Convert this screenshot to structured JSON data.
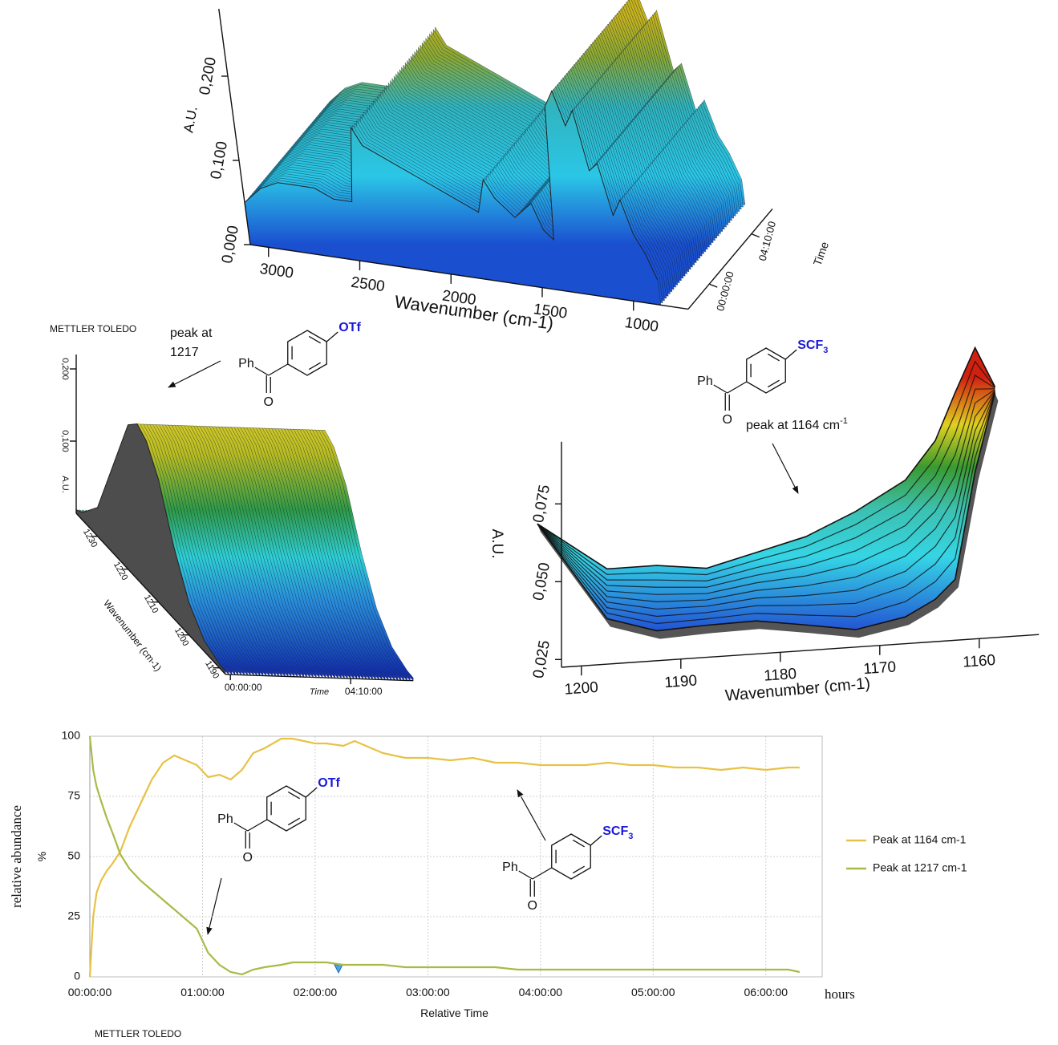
{
  "chart_data": [
    {
      "type": "surface3d",
      "x": [
        3100,
        3000,
        2900,
        2800,
        2700,
        2600,
        2500,
        2450,
        2400,
        2300,
        2200,
        2100,
        2000,
        1900,
        1800,
        1750,
        1700,
        1600,
        1500,
        1450,
        1400,
        1350,
        1300,
        1250,
        1200,
        1150,
        1100,
        1050,
        1000,
        950,
        900,
        850
      ],
      "values": [
        0.05,
        0.07,
        0.08,
        0.08,
        0.08,
        0.07,
        0.07,
        0.16,
        0.14,
        0.13,
        0.12,
        0.11,
        0.1,
        0.09,
        0.08,
        0.12,
        0.1,
        0.08,
        0.1,
        0.07,
        0.06,
        0.22,
        0.24,
        0.2,
        0.22,
        0.15,
        0.16,
        0.1,
        0.12,
        0.08,
        0.06,
        0.03
      ],
      "xlabel": "Wavenumber (cm-1)",
      "ylabel": "A.U.",
      "zlabel": "Time",
      "xlim": [
        3100,
        700
      ],
      "xticks": [
        3000,
        2500,
        2000,
        1500,
        1000
      ],
      "ylim": [
        0,
        0.28
      ],
      "yticks": [
        {
          "value": 0,
          "label": "0,000"
        },
        {
          "value": 0.1,
          "label": "0,100"
        },
        {
          "value": 0.2,
          "label": "0,200"
        }
      ],
      "zlim": [
        -125,
        375
      ],
      "zticks": [
        {
          "value": 0,
          "label": "00:00:00"
        },
        {
          "value": 250,
          "label": "04:10:00"
        }
      ]
    },
    {
      "type": "surface3d",
      "brand": "METTLER TOLEDO",
      "annotation": [
        "peak at",
        "1217"
      ],
      "molecules": [
        {
          "left": "Ph",
          "bottom": "O",
          "substituent": {
            "main": "OTf"
          }
        }
      ],
      "x": [
        1237,
        1235,
        1230,
        1225,
        1220,
        1217,
        1214,
        1210,
        1205,
        1200,
        1195,
        1190,
        1188
      ],
      "values": [
        0.005,
        0.01,
        0.04,
        0.12,
        0.2,
        0.215,
        0.205,
        0.17,
        0.1,
        0.045,
        0.015,
        0.005,
        0.004
      ],
      "xlabel": "Wavenumber (cm-1)",
      "ylabel": "A.U.",
      "zlabel": "Time",
      "xlim": [
        1237,
        1188
      ],
      "xticks": [
        1230,
        1220,
        1210,
        1200,
        1190
      ],
      "ylim": [
        0,
        0.22
      ],
      "yticks": [
        {
          "value": 0.1,
          "label": "0,100"
        },
        {
          "value": 0.2,
          "label": "0,200"
        }
      ],
      "zlim": [
        -10,
        380
      ],
      "zticks": [
        {
          "value": 0,
          "label": "00:00:00"
        },
        {
          "value": 250,
          "label": "04:10:00"
        }
      ]
    },
    {
      "type": "surface3d",
      "molecules": [
        {
          "left": "Ph",
          "bottom": "O",
          "substituent": {
            "main": "SCF",
            "sub": "3"
          }
        }
      ],
      "annotation": {
        "main": "peak at 1164 cm",
        "sup": "-1"
      },
      "x": [
        1202,
        1195,
        1190,
        1185,
        1180,
        1175,
        1170,
        1165,
        1162,
        1160,
        1158,
        1156
      ],
      "series": [
        {
          "values": [
            0.066,
            0.034,
            0.029,
            0.0297,
            0.03,
            0.0276,
            0.025,
            0.028,
            0.033,
            0.039,
            0.073,
            0.098
          ]
        },
        {
          "values": [
            0.066,
            0.05,
            0.05,
            0.048,
            0.052,
            0.056,
            0.063,
            0.072,
            0.084,
            0.099,
            0.113,
            0.1
          ]
        }
      ],
      "xlabel": "Wavenumber (cm-1)",
      "ylabel": "A.U.",
      "xlim": [
        1202,
        1154
      ],
      "xticks": [
        1200,
        1190,
        1180,
        1170,
        1160
      ],
      "ylim": [
        0.0225,
        0.095
      ],
      "yticks": [
        {
          "value": 0.025,
          "label": "0,025"
        },
        {
          "value": 0.05,
          "label": "0,050"
        },
        {
          "value": 0.075,
          "label": "0,075"
        }
      ]
    },
    {
      "type": "line",
      "brand": "METTLER TOLEDO",
      "molecules": [
        {
          "left": "Ph",
          "bottom": "O",
          "substituent": {
            "main": "OTf"
          }
        },
        {
          "left": "Ph",
          "bottom": "O",
          "substituent": {
            "main": "SCF",
            "sub": "3"
          }
        }
      ],
      "x": [
        0,
        0.03,
        0.06,
        0.1,
        0.15,
        0.2,
        0.27,
        0.35,
        0.45,
        0.55,
        0.65,
        0.75,
        0.85,
        0.95,
        1.05,
        1.15,
        1.25,
        1.35,
        1.45,
        1.55,
        1.7,
        1.8,
        1.9,
        2.0,
        2.1,
        2.25,
        2.35,
        2.45,
        2.6,
        2.8,
        3.0,
        3.2,
        3.4,
        3.6,
        3.8,
        4.0,
        4.2,
        4.4,
        4.6,
        4.8,
        5.0,
        5.2,
        5.4,
        5.6,
        5.8,
        6.0,
        6.2,
        6.3
      ],
      "series": [
        {
          "name": "Peak at 1164 cm-1",
          "color": "#e8c244",
          "values": [
            0,
            25,
            35,
            40,
            44,
            47,
            52,
            62,
            72,
            82,
            89,
            92,
            90,
            88,
            83,
            84,
            82,
            86,
            93,
            95,
            99,
            99,
            98,
            97,
            97,
            96,
            98,
            96,
            93,
            91,
            91,
            90,
            91,
            89,
            89,
            88,
            88,
            88,
            89,
            88,
            88,
            87,
            87,
            86,
            87,
            86,
            87,
            87
          ]
        },
        {
          "name": "Peak at 1217 cm-1",
          "color": "#a9ba48",
          "values": [
            100,
            86,
            79,
            73,
            66,
            60,
            51,
            45,
            40,
            36,
            32,
            28,
            24,
            20,
            10,
            5,
            2,
            1,
            3,
            4,
            5,
            6,
            6,
            6,
            6,
            5,
            5,
            5,
            5,
            4,
            4,
            4,
            4,
            4,
            3,
            3,
            3,
            3,
            3,
            3,
            3,
            3,
            3,
            3,
            3,
            3,
            3,
            2
          ]
        }
      ],
      "xlabel": "Relative Time",
      "xunit": "hours",
      "ylabel": "relative abundance",
      "yunit": "%",
      "xlim": [
        0,
        6.5
      ],
      "xticks": [
        {
          "value": 0,
          "label": "00:00:00"
        },
        {
          "value": 1,
          "label": "01:00:00"
        },
        {
          "value": 2,
          "label": "02:00:00"
        },
        {
          "value": 3,
          "label": "03:00:00"
        },
        {
          "value": 4,
          "label": "04:00:00"
        },
        {
          "value": 5,
          "label": "05:00:00"
        },
        {
          "value": 6,
          "label": "06:00:00"
        }
      ],
      "ylim": [
        0,
        100
      ],
      "yticks": [
        0,
        25,
        50,
        75,
        100
      ],
      "grid": true,
      "legend": "right"
    }
  ]
}
